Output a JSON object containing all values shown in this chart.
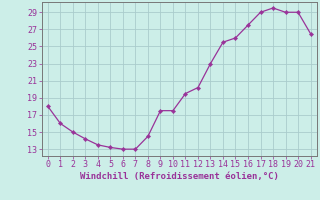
{
  "x": [
    0,
    1,
    2,
    3,
    4,
    5,
    6,
    7,
    8,
    9,
    10,
    11,
    12,
    13,
    14,
    15,
    16,
    17,
    18,
    19,
    20,
    21
  ],
  "y": [
    18.0,
    16.0,
    15.0,
    14.2,
    13.5,
    13.2,
    13.0,
    13.0,
    14.5,
    17.5,
    17.5,
    19.5,
    20.2,
    23.0,
    25.5,
    26.0,
    27.5,
    29.0,
    29.5,
    29.0,
    29.0,
    26.5
  ],
  "line_color": "#993399",
  "marker": "D",
  "marker_size": 2.2,
  "bg_color": "#cceee8",
  "grid_color": "#aacccc",
  "xlabel": "Windchill (Refroidissement éolien,°C)",
  "ylabel_ticks": [
    13,
    15,
    17,
    19,
    21,
    23,
    25,
    27,
    29
  ],
  "xlim": [
    -0.5,
    21.5
  ],
  "ylim": [
    12.2,
    30.2
  ],
  "tick_color": "#993399",
  "label_color": "#993399",
  "axis_label_fontsize": 6.5,
  "tick_fontsize": 6.0,
  "spine_color": "#777777"
}
